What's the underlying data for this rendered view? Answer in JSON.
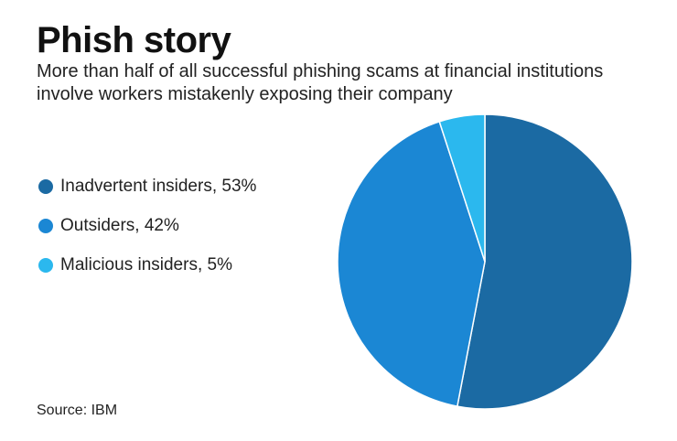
{
  "title": "Phish story",
  "subtitle": "More than half of all successful phishing scams at financial institutions involve workers mistakenly exposing their company",
  "source": "Source: IBM",
  "chart_data": {
    "type": "pie",
    "title": "Phish story",
    "subtitle": "More than half of all successful phishing scams at financial institutions involve workers mistakenly exposing their company",
    "legend_position": "left",
    "start_angle_deg": 0,
    "direction": "clockwise",
    "slices": [
      {
        "label": "Inadvertent insiders, 53%",
        "name": "Inadvertent insiders",
        "value": 53,
        "color": "#1b6aa3"
      },
      {
        "label": "Outsiders, 42%",
        "name": "Outsiders",
        "value": 42,
        "color": "#1b87d4"
      },
      {
        "label": "Malicious insiders, 5%",
        "name": "Malicious insiders",
        "value": 5,
        "color": "#2bb8ee"
      }
    ]
  }
}
